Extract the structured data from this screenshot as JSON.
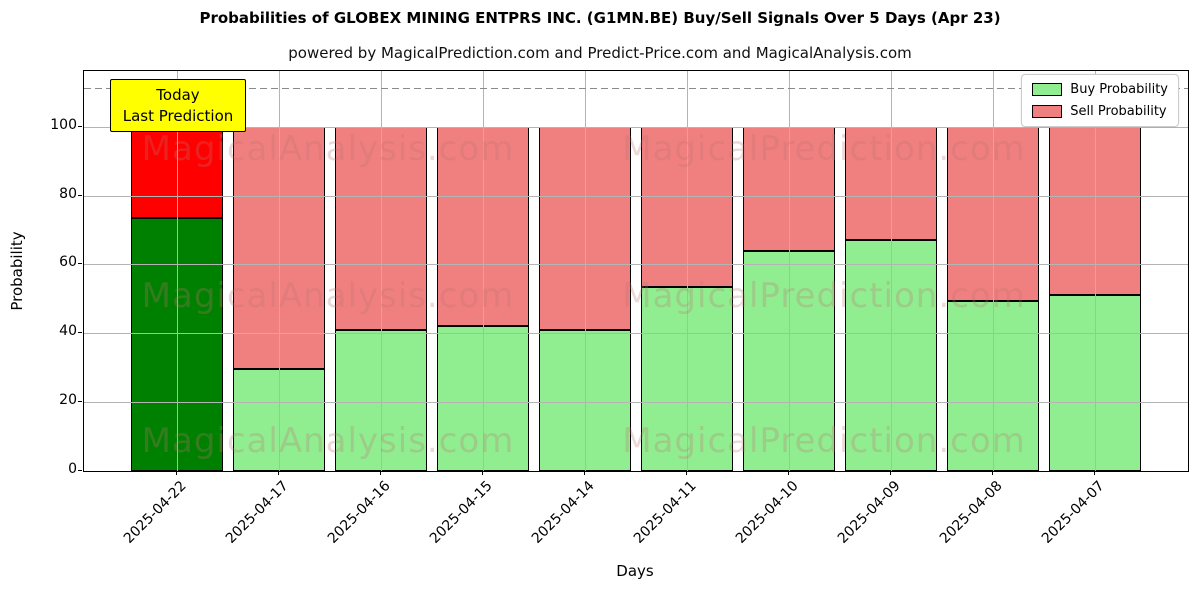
{
  "title": "Probabilities of GLOBEX MINING ENTPRS INC. (G1MN.BE) Buy/Sell Signals Over 5 Days (Apr 23)",
  "subtitle": "powered by MagicalPrediction.com and Predict-Price.com and MagicalAnalysis.com",
  "legend": {
    "items": [
      {
        "label": "Buy Probability",
        "color": "#90ee90"
      },
      {
        "label": "Sell Probability",
        "color": "#f08080"
      }
    ]
  },
  "chart_data": {
    "type": "bar",
    "stacked": true,
    "title": "Probabilities of GLOBEX MINING ENTPRS INC. (G1MN.BE) Buy/Sell Signals Over 5 Days (Apr 23)",
    "xlabel": "Days",
    "ylabel": "Probability",
    "categories": [
      "2025-04-22",
      "2025-04-17",
      "2025-04-16",
      "2025-04-15",
      "2025-04-14",
      "2025-04-11",
      "2025-04-10",
      "2025-04-09",
      "2025-04-08",
      "2025-04-07"
    ],
    "series": [
      {
        "name": "Buy Probability",
        "color": "#90ee90",
        "today_color": "#008000",
        "values": [
          73.5,
          29.5,
          41,
          42,
          41,
          53.5,
          64,
          67,
          49.5,
          51
        ]
      },
      {
        "name": "Sell Probability",
        "color": "#f08080",
        "today_color": "#ff0000",
        "values": [
          26.5,
          70.5,
          59,
          58,
          59,
          46.5,
          36,
          33,
          50.5,
          49
        ]
      }
    ],
    "yticks": [
      0,
      20,
      40,
      60,
      80,
      100
    ],
    "ylim": [
      0,
      116.2
    ],
    "grid": true,
    "grid_over_bars": true,
    "legend_position": "upper right",
    "reference_line_y": 110.9,
    "annotation": {
      "lines": [
        "Today",
        "Last Prediction"
      ],
      "bg": "#ffff00",
      "bar_index": 0
    },
    "watermarks": {
      "left_text": "MagicalAnalysis.com",
      "right_text": "MagicalPrediction.com",
      "row_y_values": [
        78,
        225,
        370
      ],
      "left_center_x": 244,
      "right_center_x": 740
    }
  }
}
